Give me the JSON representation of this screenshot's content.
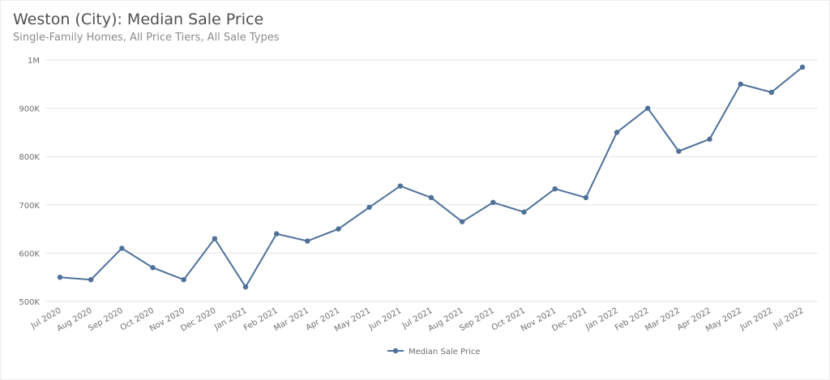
{
  "header": {
    "title": "Weston (City): Median Sale Price",
    "subtitle": "Single-Family Homes, All Price Tiers, All Sale Types"
  },
  "legend": {
    "label": "Median Sale Price"
  },
  "colors": {
    "series": "#4e7199",
    "grid": "#e3e3e3",
    "text": "#6f6f6f"
  },
  "chart_data": {
    "type": "line",
    "title": "Weston (City): Median Sale Price",
    "subtitle": "Single-Family Homes, All Price Tiers, All Sale Types",
    "xlabel": "",
    "ylabel": "",
    "ylim": [
      500000,
      1000000
    ],
    "yticks": [
      500000,
      600000,
      700000,
      800000,
      900000,
      1000000
    ],
    "ytick_labels": [
      "500K",
      "600K",
      "700K",
      "800K",
      "900K",
      "1M"
    ],
    "grid": true,
    "legend_position": "bottom",
    "categories": [
      "Jul 2020",
      "Aug 2020",
      "Sep 2020",
      "Oct 2020",
      "Nov 2020",
      "Dec 2020",
      "Jan 2021",
      "Feb 2021",
      "Mar 2021",
      "Apr 2021",
      "May 2021",
      "Jun 2021",
      "Jul 2021",
      "Aug 2021",
      "Sep 2021",
      "Oct 2021",
      "Nov 2021",
      "Dec 2021",
      "Jan 2022",
      "Feb 2022",
      "Mar 2022",
      "Apr 2022",
      "May 2022",
      "Jun 2022",
      "Jul 2022"
    ],
    "series": [
      {
        "name": "Median Sale Price",
        "values": [
          550000,
          545000,
          610000,
          570000,
          545000,
          630000,
          530000,
          640000,
          625000,
          650000,
          695000,
          739000,
          715000,
          665000,
          705000,
          685000,
          733000,
          715000,
          850000,
          900000,
          811000,
          836000,
          950000,
          933000,
          985000
        ]
      }
    ]
  }
}
